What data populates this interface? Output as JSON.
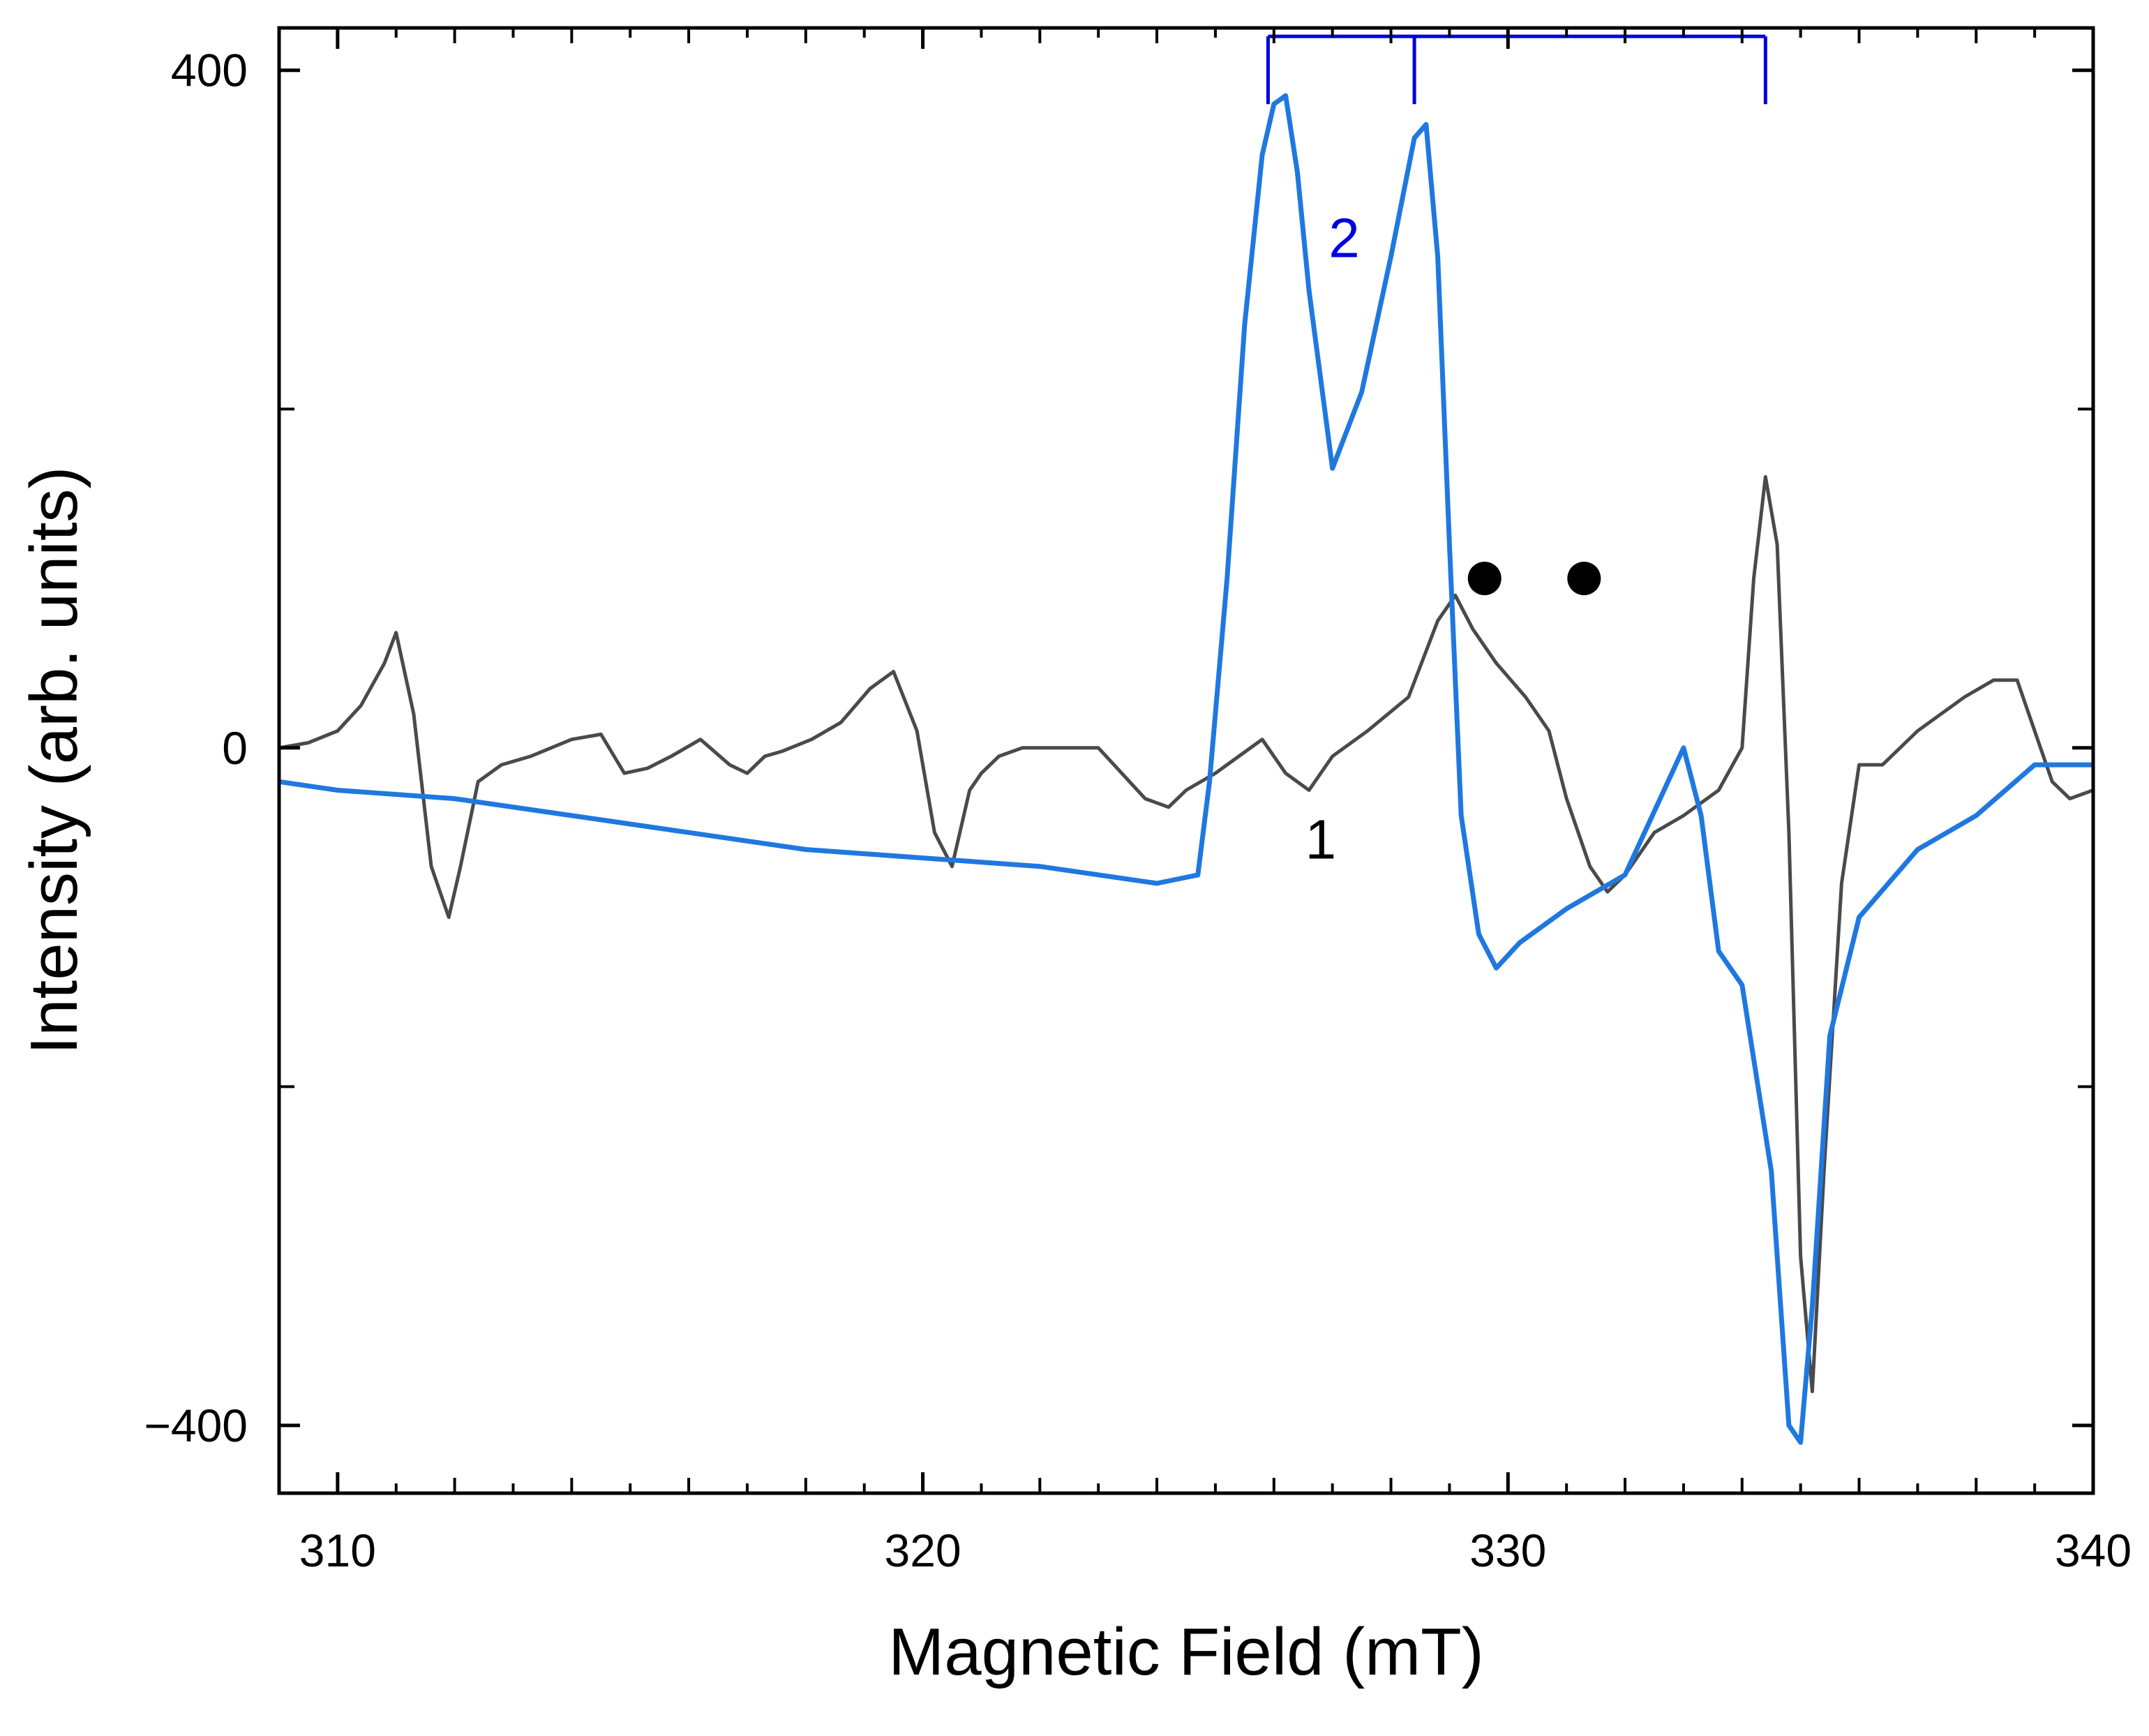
{
  "chart_data": {
    "type": "line",
    "title": "",
    "xlabel": "Magnetic Field (mT)",
    "ylabel": "Intensity (arb. units)",
    "xlim": [
      309,
      340
    ],
    "ylim": [
      -440,
      425
    ],
    "xticks_major": [
      310,
      320,
      330,
      340
    ],
    "xtick_labels": [
      "310",
      "320",
      "330",
      "340"
    ],
    "yticks_major": [
      -400,
      0,
      400
    ],
    "ytick_labels": [
      "−400",
      "0",
      "400"
    ],
    "yticks_minor": [
      -200,
      200
    ],
    "grid": false,
    "series": [
      {
        "name": "1",
        "color": "#4a4a4a",
        "x": [
          309,
          309.5,
          310,
          310.4,
          310.8,
          311.0,
          311.3,
          311.6,
          311.9,
          312.1,
          312.4,
          312.8,
          313.3,
          314.0,
          314.5,
          314.9,
          315.3,
          315.7,
          316.2,
          316.7,
          317.0,
          317.3,
          317.6,
          318.1,
          318.6,
          319.1,
          319.5,
          319.9,
          320.2,
          320.5,
          320.8,
          321.0,
          321.3,
          321.7,
          322.2,
          323.0,
          323.8,
          324.2,
          324.5,
          325.0,
          325.8,
          326.2,
          326.6,
          327.0,
          327.6,
          328.3,
          328.8,
          329.1,
          329.4,
          329.8,
          330.3,
          330.7,
          331.0,
          331.4,
          331.7,
          332.0,
          332.5,
          333.0,
          333.6,
          334.0,
          334.2,
          334.4,
          334.6,
          334.8,
          335.0,
          335.2,
          335.4,
          335.7,
          336.0,
          336.4,
          337.0,
          337.8,
          338.3,
          338.7,
          339.0,
          339.3,
          339.6,
          340
        ],
        "y": [
          0,
          3,
          10,
          25,
          50,
          68,
          20,
          -70,
          -100,
          -70,
          -20,
          -10,
          -5,
          5,
          8,
          -15,
          -12,
          -5,
          5,
          -10,
          -15,
          -5,
          -2,
          5,
          15,
          35,
          45,
          10,
          -50,
          -70,
          -25,
          -15,
          -5,
          0,
          0,
          0,
          -30,
          -35,
          -25,
          -15,
          5,
          -15,
          -25,
          -5,
          10,
          30,
          75,
          90,
          70,
          50,
          30,
          10,
          -30,
          -70,
          -85,
          -75,
          -50,
          -40,
          -25,
          0,
          100,
          160,
          120,
          -50,
          -300,
          -380,
          -250,
          -80,
          -10,
          -10,
          10,
          30,
          40,
          40,
          10,
          -20,
          -30,
          -25
        ]
      },
      {
        "name": "2",
        "color": "#1f78e0",
        "x": [
          309,
          310,
          312,
          315,
          318,
          320,
          322,
          324,
          324.7,
          324.9,
          325.2,
          325.5,
          325.8,
          326.0,
          326.2,
          326.4,
          326.6,
          327.0,
          327.5,
          328.0,
          328.4,
          328.6,
          328.8,
          329.0,
          329.2,
          329.5,
          329.8,
          330.2,
          331.0,
          332.0,
          332.6,
          333.0,
          333.3,
          333.6,
          334.0,
          334.5,
          334.8,
          335.0,
          335.2,
          335.5,
          336.0,
          337.0,
          338.0,
          339.0,
          340
        ],
        "y": [
          -20,
          -25,
          -30,
          -45,
          -60,
          -65,
          -70,
          -80,
          -75,
          -20,
          100,
          250,
          350,
          380,
          385,
          340,
          270,
          165,
          210,
          290,
          360,
          368,
          290,
          120,
          -40,
          -110,
          -130,
          -115,
          -95,
          -75,
          -30,
          0,
          -40,
          -120,
          -140,
          -250,
          -400,
          -410,
          -330,
          -170,
          -100,
          -60,
          -40,
          -10,
          -10
        ]
      }
    ],
    "annotations": {
      "curve_labels": [
        {
          "text": "1",
          "x": 326.8,
          "y": -55
        },
        {
          "text": "2",
          "x": 327.2,
          "y": 300
        }
      ],
      "dots": [
        {
          "x": 329.6,
          "y": 100
        },
        {
          "x": 331.3,
          "y": 100
        }
      ],
      "stick_diagram": {
        "y_top": 420,
        "y_bottom": 380,
        "x_start": 325.9,
        "x_end": 334.4,
        "x_ticks": [
          325.9,
          328.4,
          334.4
        ],
        "color": "#0000dd"
      }
    }
  }
}
